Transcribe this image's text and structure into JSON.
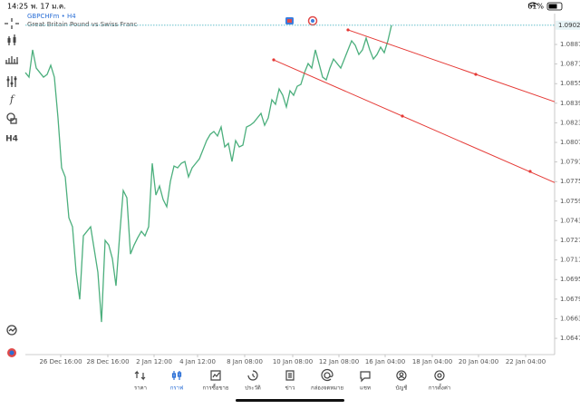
{
  "status_bar": {
    "time": "14:25",
    "date": "พ. 17 ม.ค.",
    "battery": "61%"
  },
  "toolbar": {
    "timeframe": "H4"
  },
  "chart_data": {
    "type": "line",
    "header": "GBPCHFm • H4",
    "title": "Great Britain Pound vs Swiss Franc",
    "color": "#4caf7d",
    "values": [
      1.0864,
      1.08603,
      1.08826,
      1.08677,
      1.0864,
      1.08603,
      1.08625,
      1.087,
      1.08603,
      1.0827,
      1.07862,
      1.07788,
      1.07455,
      1.07381,
      1.0701,
      1.06788,
      1.07307,
      1.07344,
      1.07381,
      1.07195,
      1.0701,
      1.06603,
      1.0727,
      1.07232,
      1.07121,
      1.06899,
      1.07307,
      1.07677,
      1.07618,
      1.07158,
      1.07232,
      1.07292,
      1.07344,
      1.07307,
      1.07381,
      1.07899,
      1.0764,
      1.07714,
      1.07603,
      1.07544,
      1.07751,
      1.07877,
      1.07862,
      1.07899,
      1.07914,
      1.07788,
      1.07862,
      1.07899,
      1.07936,
      1.0801,
      1.08085,
      1.08136,
      1.08159,
      1.08122,
      1.08196,
      1.08033,
      1.08062,
      1.07914,
      1.08085,
      1.08033,
      1.08048,
      1.08196,
      1.0821,
      1.08233,
      1.0827,
      1.08307,
      1.0821,
      1.0827,
      1.08418,
      1.08381,
      1.08507,
      1.08455,
      1.08359,
      1.08492,
      1.08455,
      1.08529,
      1.08544,
      1.0864,
      1.08714,
      1.08677,
      1.08826,
      1.08714,
      1.08603,
      1.08581,
      1.08677,
      1.08751,
      1.08714,
      1.08677,
      1.08751,
      1.08826,
      1.089,
      1.08863,
      1.08788,
      1.08826,
      1.08922,
      1.08826,
      1.08751,
      1.08788,
      1.08848,
      1.08803,
      1.089,
      1.09027
    ],
    "xlim": [
      0,
      146
    ],
    "xticks": [
      {
        "value": 9.75,
        "label": "26 Dec 16:00"
      },
      {
        "value": 22.75,
        "label": "28 Dec 16:00"
      },
      {
        "value": 35.5,
        "label": "2 Jan 12:00"
      },
      {
        "value": 47.5,
        "label": "4 Jan 12:00"
      },
      {
        "value": 60.5,
        "label": "8 Jan 08:00"
      },
      {
        "value": 73.75,
        "label": "10 Jan 08:00"
      },
      {
        "value": 86.5,
        "label": "12 Jan 08:00"
      },
      {
        "value": 99.25,
        "label": "16 Jan 04:00"
      },
      {
        "value": 112.25,
        "label": "18 Jan 04:00"
      },
      {
        "value": 125,
        "label": "20 Jan 04:00"
      },
      {
        "value": 138,
        "label": "22 Jan 04:00"
      }
    ],
    "ylim": [
      1.06337,
      1.09122
    ],
    "yticks": [
      {
        "value": 1.0887,
        "label": "1.08870"
      },
      {
        "value": 1.0871,
        "label": "1.08710"
      },
      {
        "value": 1.0855,
        "label": "1.08550"
      },
      {
        "value": 1.0839,
        "label": "1.08390"
      },
      {
        "value": 1.0823,
        "label": "1.08230"
      },
      {
        "value": 1.0807,
        "label": "1.08070"
      },
      {
        "value": 1.0791,
        "label": "1.07910"
      },
      {
        "value": 1.0775,
        "label": "1.07750"
      },
      {
        "value": 1.0759,
        "label": "1.07590"
      },
      {
        "value": 1.0743,
        "label": "1.07430"
      },
      {
        "value": 1.0727,
        "label": "1.07270"
      },
      {
        "value": 1.0711,
        "label": "1.07110"
      },
      {
        "value": 1.0695,
        "label": "1.06950"
      },
      {
        "value": 1.0679,
        "label": "1.06790"
      },
      {
        "value": 1.0663,
        "label": "1.06630"
      },
      {
        "value": 1.0647,
        "label": "1.06470"
      }
    ],
    "current_price": 1.09027,
    "current_price_color": "#4fb6c4",
    "grid": false,
    "trendline_color": "#e53935",
    "trendlines": [
      {
        "x": [
          68.5,
          104,
          139.25
        ],
        "y": [
          1.08744,
          1.08285,
          1.07833
        ]
      },
      {
        "x": [
          89,
          124.25
        ],
        "y": [
          1.08989,
          1.08626
        ]
      }
    ]
  },
  "nav": {
    "active": 1,
    "items": [
      "ราคา",
      "กราฟ",
      "การซื้อขาย",
      "ประวัติ",
      "ข่าว",
      "กล่องจดหมาย",
      "แชท",
      "บัญชี",
      "การตั้งค่า"
    ]
  }
}
